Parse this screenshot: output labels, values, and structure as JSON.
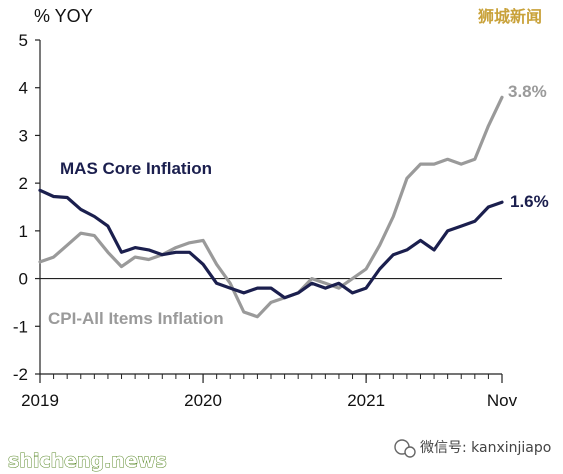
{
  "chart_data": {
    "type": "line",
    "unit_label": "% YOY",
    "ylim": [
      -2,
      5
    ],
    "y_ticks": [
      "5",
      "4",
      "3",
      "2",
      "1",
      "0",
      "-1",
      "-2"
    ],
    "x_tick_labels": [
      "2019",
      "2020",
      "2021",
      "Nov"
    ],
    "x_tick_dates": [
      "2019-01",
      "2020-01",
      "2021-01",
      "2021-11"
    ],
    "zero_line": true,
    "grid": false,
    "x": [
      "2019-01",
      "2019-02",
      "2019-03",
      "2019-04",
      "2019-05",
      "2019-06",
      "2019-07",
      "2019-08",
      "2019-09",
      "2019-10",
      "2019-11",
      "2019-12",
      "2020-01",
      "2020-02",
      "2020-03",
      "2020-04",
      "2020-05",
      "2020-06",
      "2020-07",
      "2020-08",
      "2020-09",
      "2020-10",
      "2020-11",
      "2020-12",
      "2021-01",
      "2021-02",
      "2021-03",
      "2021-04",
      "2021-05",
      "2021-06",
      "2021-07",
      "2021-08",
      "2021-09",
      "2021-10",
      "2021-11"
    ],
    "series": [
      {
        "name": "MAS Core Inflation",
        "color": "#1b1f4e",
        "end_label": "1.6%",
        "values": [
          1.85,
          1.72,
          1.7,
          1.45,
          1.3,
          1.1,
          0.55,
          0.65,
          0.6,
          0.5,
          0.55,
          0.55,
          0.3,
          -0.1,
          -0.2,
          -0.3,
          -0.2,
          -0.2,
          -0.4,
          -0.3,
          -0.1,
          -0.2,
          -0.1,
          -0.3,
          -0.2,
          0.2,
          0.5,
          0.6,
          0.8,
          0.6,
          1.0,
          1.1,
          1.2,
          1.5,
          1.6
        ]
      },
      {
        "name": "CPI-All Items Inflation",
        "color": "#9a9a9a",
        "end_label": "3.8%",
        "values": [
          0.35,
          0.45,
          0.7,
          0.95,
          0.9,
          0.55,
          0.25,
          0.45,
          0.4,
          0.5,
          0.65,
          0.75,
          0.8,
          0.3,
          -0.1,
          -0.7,
          -0.8,
          -0.5,
          -0.4,
          -0.3,
          0.0,
          -0.1,
          -0.2,
          0.0,
          0.2,
          0.7,
          1.3,
          2.1,
          2.4,
          2.4,
          2.5,
          2.4,
          2.5,
          3.2,
          3.8
        ]
      }
    ]
  },
  "watermarks": {
    "top_right": "狮城新闻",
    "bottom_left": "shicheng.news",
    "bottom_right": "微信号: kanxinjiapo"
  }
}
